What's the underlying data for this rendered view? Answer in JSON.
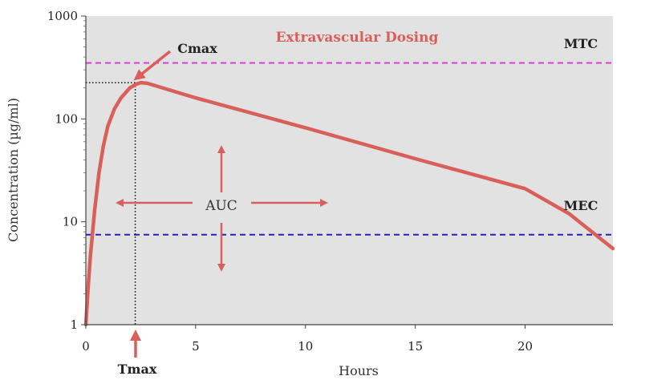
{
  "chart_data": {
    "type": "line",
    "title": "Extravascular Dosing",
    "xlabel": "Hours",
    "ylabel": "Concentration (µg/ml)",
    "xlim": [
      0,
      24
    ],
    "ylim": [
      1,
      1000
    ],
    "yscale": "log",
    "x_ticks": [
      "0",
      "5",
      "10",
      "15",
      "20"
    ],
    "y_ticks": [
      "1",
      "10",
      "100",
      "1000"
    ],
    "grid": false,
    "series": [
      {
        "color": "#d9605a",
        "x": [
          0,
          0.1,
          0.2,
          0.4,
          0.6,
          0.8,
          1.0,
          1.3,
          1.6,
          2.0,
          2.3,
          2.5,
          2.8,
          5,
          10,
          15,
          20,
          22,
          24
        ],
        "y": [
          1,
          2.2,
          4.5,
          13,
          30,
          55,
          85,
          125,
          160,
          200,
          218,
          225,
          222,
          160,
          82,
          41,
          21,
          12,
          5.5
        ]
      }
    ],
    "reference_lines": [
      {
        "label": "MTC",
        "value": 350,
        "color": "#d63cd6"
      },
      {
        "label": "MEC",
        "value": 7.5,
        "color": "#2222bb"
      }
    ],
    "annotations": {
      "cmax": {
        "label": "Cmax",
        "x": 2.25,
        "y": 225
      },
      "tmax": {
        "label": "Tmax",
        "x": 2.25
      },
      "auc": {
        "label": "AUC"
      }
    },
    "colors": {
      "plot_background": "#e2e2e2",
      "curve": "#d9605a",
      "title": "#d9605a",
      "guide_lines": "#111111"
    }
  }
}
